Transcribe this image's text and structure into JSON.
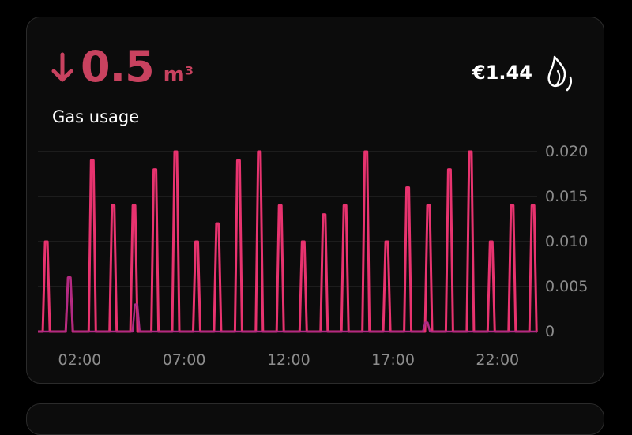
{
  "header": {
    "value": "0.5",
    "unit": "m³",
    "label": "Gas usage",
    "cost": "€1.44",
    "trend_icon": "arrow-down-icon",
    "entity_icon": "fire-icon"
  },
  "colors": {
    "accent": "#c8425f",
    "line": "#e8336f",
    "background": "#0c0c0c",
    "grid": "#2e2e2e"
  },
  "chart_data": {
    "type": "line",
    "title": "",
    "xlabel": "",
    "ylabel": "",
    "x_tick_labels": [
      "02:00",
      "07:00",
      "12:00",
      "17:00",
      "22:00"
    ],
    "x_ticks_hours": [
      2,
      7,
      12,
      17,
      22
    ],
    "y_tick_labels": [
      "0",
      "0.005",
      "0.010",
      "0.015",
      "0.020"
    ],
    "y_ticks": [
      0,
      0.005,
      0.01,
      0.015,
      0.02
    ],
    "ylim": [
      0,
      0.02
    ],
    "xlim_hours": [
      0.0,
      23.9
    ],
    "grid": true,
    "series": [
      {
        "x_hours": [
          0.4,
          1.5,
          2.6,
          3.6,
          4.6,
          5.6,
          6.6,
          7.6,
          8.6,
          9.6,
          10.6,
          11.6,
          12.7,
          13.7,
          14.7,
          15.7,
          16.7,
          17.7,
          18.7,
          19.7,
          20.7,
          21.7,
          22.7,
          23.7
        ],
        "values": [
          0.01,
          0.006,
          0.019,
          0.014,
          0.014,
          0.018,
          0.02,
          0.01,
          0.012,
          0.019,
          0.02,
          0.014,
          0.01,
          0.013,
          0.014,
          0.02,
          0.01,
          0.016,
          0.014,
          0.018,
          0.02,
          0.01,
          0.014,
          0.014
        ]
      },
      {
        "x_hours": [
          1.5,
          4.7,
          18.6
        ],
        "values": [
          0.006,
          0.003,
          0.001
        ]
      }
    ]
  }
}
